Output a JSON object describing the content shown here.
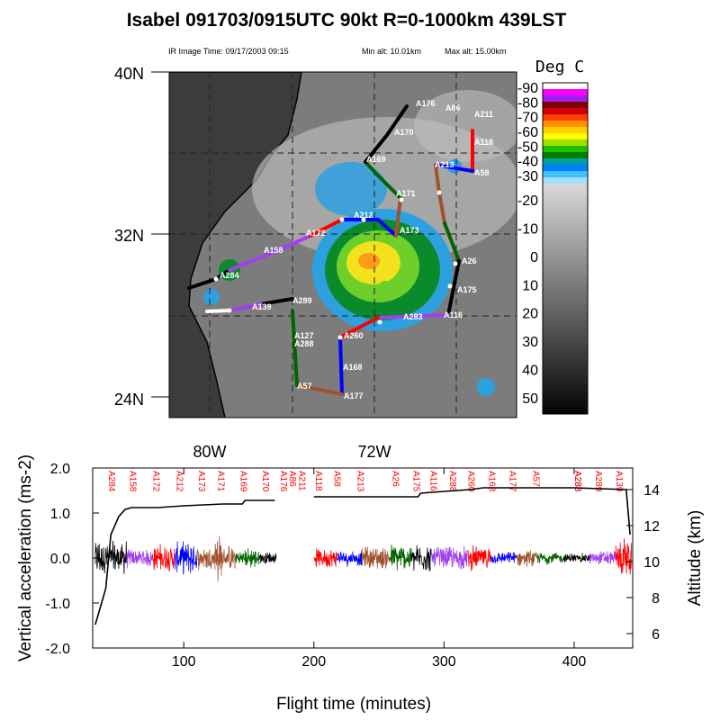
{
  "header": {
    "title": "Isabel 091703/0915UTC 90kt  R=0-1000km 439LST",
    "ir_time": "IR Image Time: 09/17/2003 09:15",
    "min_alt": "Min alt: 10.01km",
    "max_alt": "Max alt: 15.00km"
  },
  "map": {
    "lat_labels": [
      "40N",
      "32N",
      "24N"
    ],
    "lon_labels": [
      "80W",
      "72W"
    ],
    "colorbar_title": "Deg C",
    "colorbar_ticks": [
      "-90",
      "-80",
      "-70",
      "-60",
      "-50",
      "-40",
      "-30",
      "-20",
      "-10",
      "0",
      "10",
      "20",
      "30",
      "40",
      "50"
    ],
    "colorbar_colors": [
      "#ffffff",
      "#ff00ff",
      "#a020f0",
      "#800000",
      "#d00000",
      "#ff4000",
      "#ff9000",
      "#ffd000",
      "#ffff00",
      "#a0e000",
      "#20c000",
      "#008000",
      "#00a0a0",
      "#0080ff",
      "#40c0ff",
      "#a0e0ff"
    ],
    "track_labels": [
      {
        "text": "A176"
      },
      {
        "text": "A86"
      },
      {
        "text": "A211"
      },
      {
        "text": "A170"
      },
      {
        "text": "A118"
      },
      {
        "text": "A169"
      },
      {
        "text": "A213"
      },
      {
        "text": "A58"
      },
      {
        "text": "A171"
      },
      {
        "text": "A212"
      },
      {
        "text": "A172"
      },
      {
        "text": "A173"
      },
      {
        "text": "A158"
      },
      {
        "text": "A26"
      },
      {
        "text": "A284"
      },
      {
        "text": "A175"
      },
      {
        "text": "A289"
      },
      {
        "text": "A139"
      },
      {
        "text": "A283"
      },
      {
        "text": "A116"
      },
      {
        "text": "A127"
      },
      {
        "text": "A288"
      },
      {
        "text": "A260"
      },
      {
        "text": "A168"
      },
      {
        "text": "A57"
      },
      {
        "text": "A177"
      }
    ]
  },
  "colors": {
    "black": "#000000",
    "purple": "#a040f0",
    "red": "#ff0000",
    "blue": "#0000ff",
    "brown": "#a0522d",
    "green": "#006400",
    "marker_red": "#ff0000"
  },
  "chart_data": {
    "type": "line",
    "title": "",
    "xlabel": "Flight time (minutes)",
    "ylabel": "Vertical acceleration (ms-2)",
    "ylabel_right": "Altitude (km)",
    "xlim": [
      30,
      445
    ],
    "ylim": [
      -2.0,
      2.0
    ],
    "ylim_right": [
      5.2,
      15.2
    ],
    "x_ticks": [
      "100",
      "200",
      "300",
      "400"
    ],
    "y_ticks": [
      "2.0",
      "1.0",
      "0.0",
      "-1.0",
      "-2.0"
    ],
    "y_right_ticks": [
      "6",
      "8",
      "10",
      "12",
      "14"
    ],
    "waypoint_labels": [
      "A284",
      "A158",
      "A172",
      "A212",
      "A173",
      "A171",
      "A169",
      "A170",
      "A176",
      "A86",
      "A211",
      "A118",
      "A58",
      "A213",
      "A26",
      "A175",
      "A116",
      "A288",
      "A260",
      "A168",
      "A177",
      "A57",
      "A283",
      "A288",
      "A289",
      "A139"
    ],
    "waypoint_minutes": [
      44,
      60,
      78,
      96,
      113,
      128,
      145,
      162,
      176,
      183,
      190,
      203,
      217,
      235,
      262,
      278,
      291,
      306,
      320,
      336,
      352,
      370,
      402,
      402,
      418,
      434
    ],
    "series": [
      {
        "name": "Altitude",
        "axis": "right",
        "x": [
          32,
          40,
          44,
          50,
          55,
          60,
          80,
          100,
          130,
          145,
          147,
          170,
          200,
          280,
          282,
          300,
          320,
          330,
          400,
          440,
          443
        ],
        "y": [
          6.5,
          8.5,
          11.5,
          12.5,
          12.9,
          13.0,
          13.0,
          13.1,
          13.2,
          13.2,
          13.4,
          13.4,
          13.6,
          13.6,
          13.8,
          13.9,
          14.0,
          14.1,
          14.1,
          14.0,
          11.5
        ]
      },
      {
        "segment_color": "black",
        "x_range": [
          32,
          56
        ],
        "amplitude": 0.45
      },
      {
        "segment_color": "purple",
        "x_range": [
          56,
          76
        ],
        "amplitude": 0.25
      },
      {
        "segment_color": "red",
        "x_range": [
          76,
          93
        ],
        "amplitude": 0.35
      },
      {
        "segment_color": "blue",
        "x_range": [
          93,
          110
        ],
        "amplitude": 0.4
      },
      {
        "segment_color": "brown",
        "x_range": [
          110,
          140
        ],
        "amplitude": 0.3
      },
      {
        "segment_color": "brown",
        "x_range": [
          124,
          129
        ],
        "amplitude": 0.75
      },
      {
        "segment_color": "green",
        "x_range": [
          140,
          158
        ],
        "amplitude": 0.25
      },
      {
        "segment_color": "black",
        "x_range": [
          158,
          171
        ],
        "amplitude": 0.15
      },
      {
        "segment_color": "red",
        "x_range": [
          200,
          218
        ],
        "amplitude": 0.25
      },
      {
        "segment_color": "blue",
        "x_range": [
          218,
          237
        ],
        "amplitude": 0.2
      },
      {
        "segment_color": "brown",
        "x_range": [
          237,
          258
        ],
        "amplitude": 0.3
      },
      {
        "segment_color": "green",
        "x_range": [
          258,
          275
        ],
        "amplitude": 0.35
      },
      {
        "segment_color": "black",
        "x_range": [
          275,
          290
        ],
        "amplitude": 0.35
      },
      {
        "segment_color": "purple",
        "x_range": [
          290,
          318
        ],
        "amplitude": 0.3
      },
      {
        "segment_color": "red",
        "x_range": [
          318,
          336
        ],
        "amplitude": 0.3
      },
      {
        "segment_color": "blue",
        "x_range": [
          336,
          356
        ],
        "amplitude": 0.15
      },
      {
        "segment_color": "brown",
        "x_range": [
          356,
          372
        ],
        "amplitude": 0.2
      },
      {
        "segment_color": "green",
        "x_range": [
          372,
          392
        ],
        "amplitude": 0.15
      },
      {
        "segment_color": "black",
        "x_range": [
          392,
          412
        ],
        "amplitude": 0.12
      },
      {
        "segment_color": "purple",
        "x_range": [
          412,
          432
        ],
        "amplitude": 0.2
      },
      {
        "segment_color": "red",
        "x_range": [
          432,
          444
        ],
        "amplitude": 0.5
      }
    ]
  }
}
